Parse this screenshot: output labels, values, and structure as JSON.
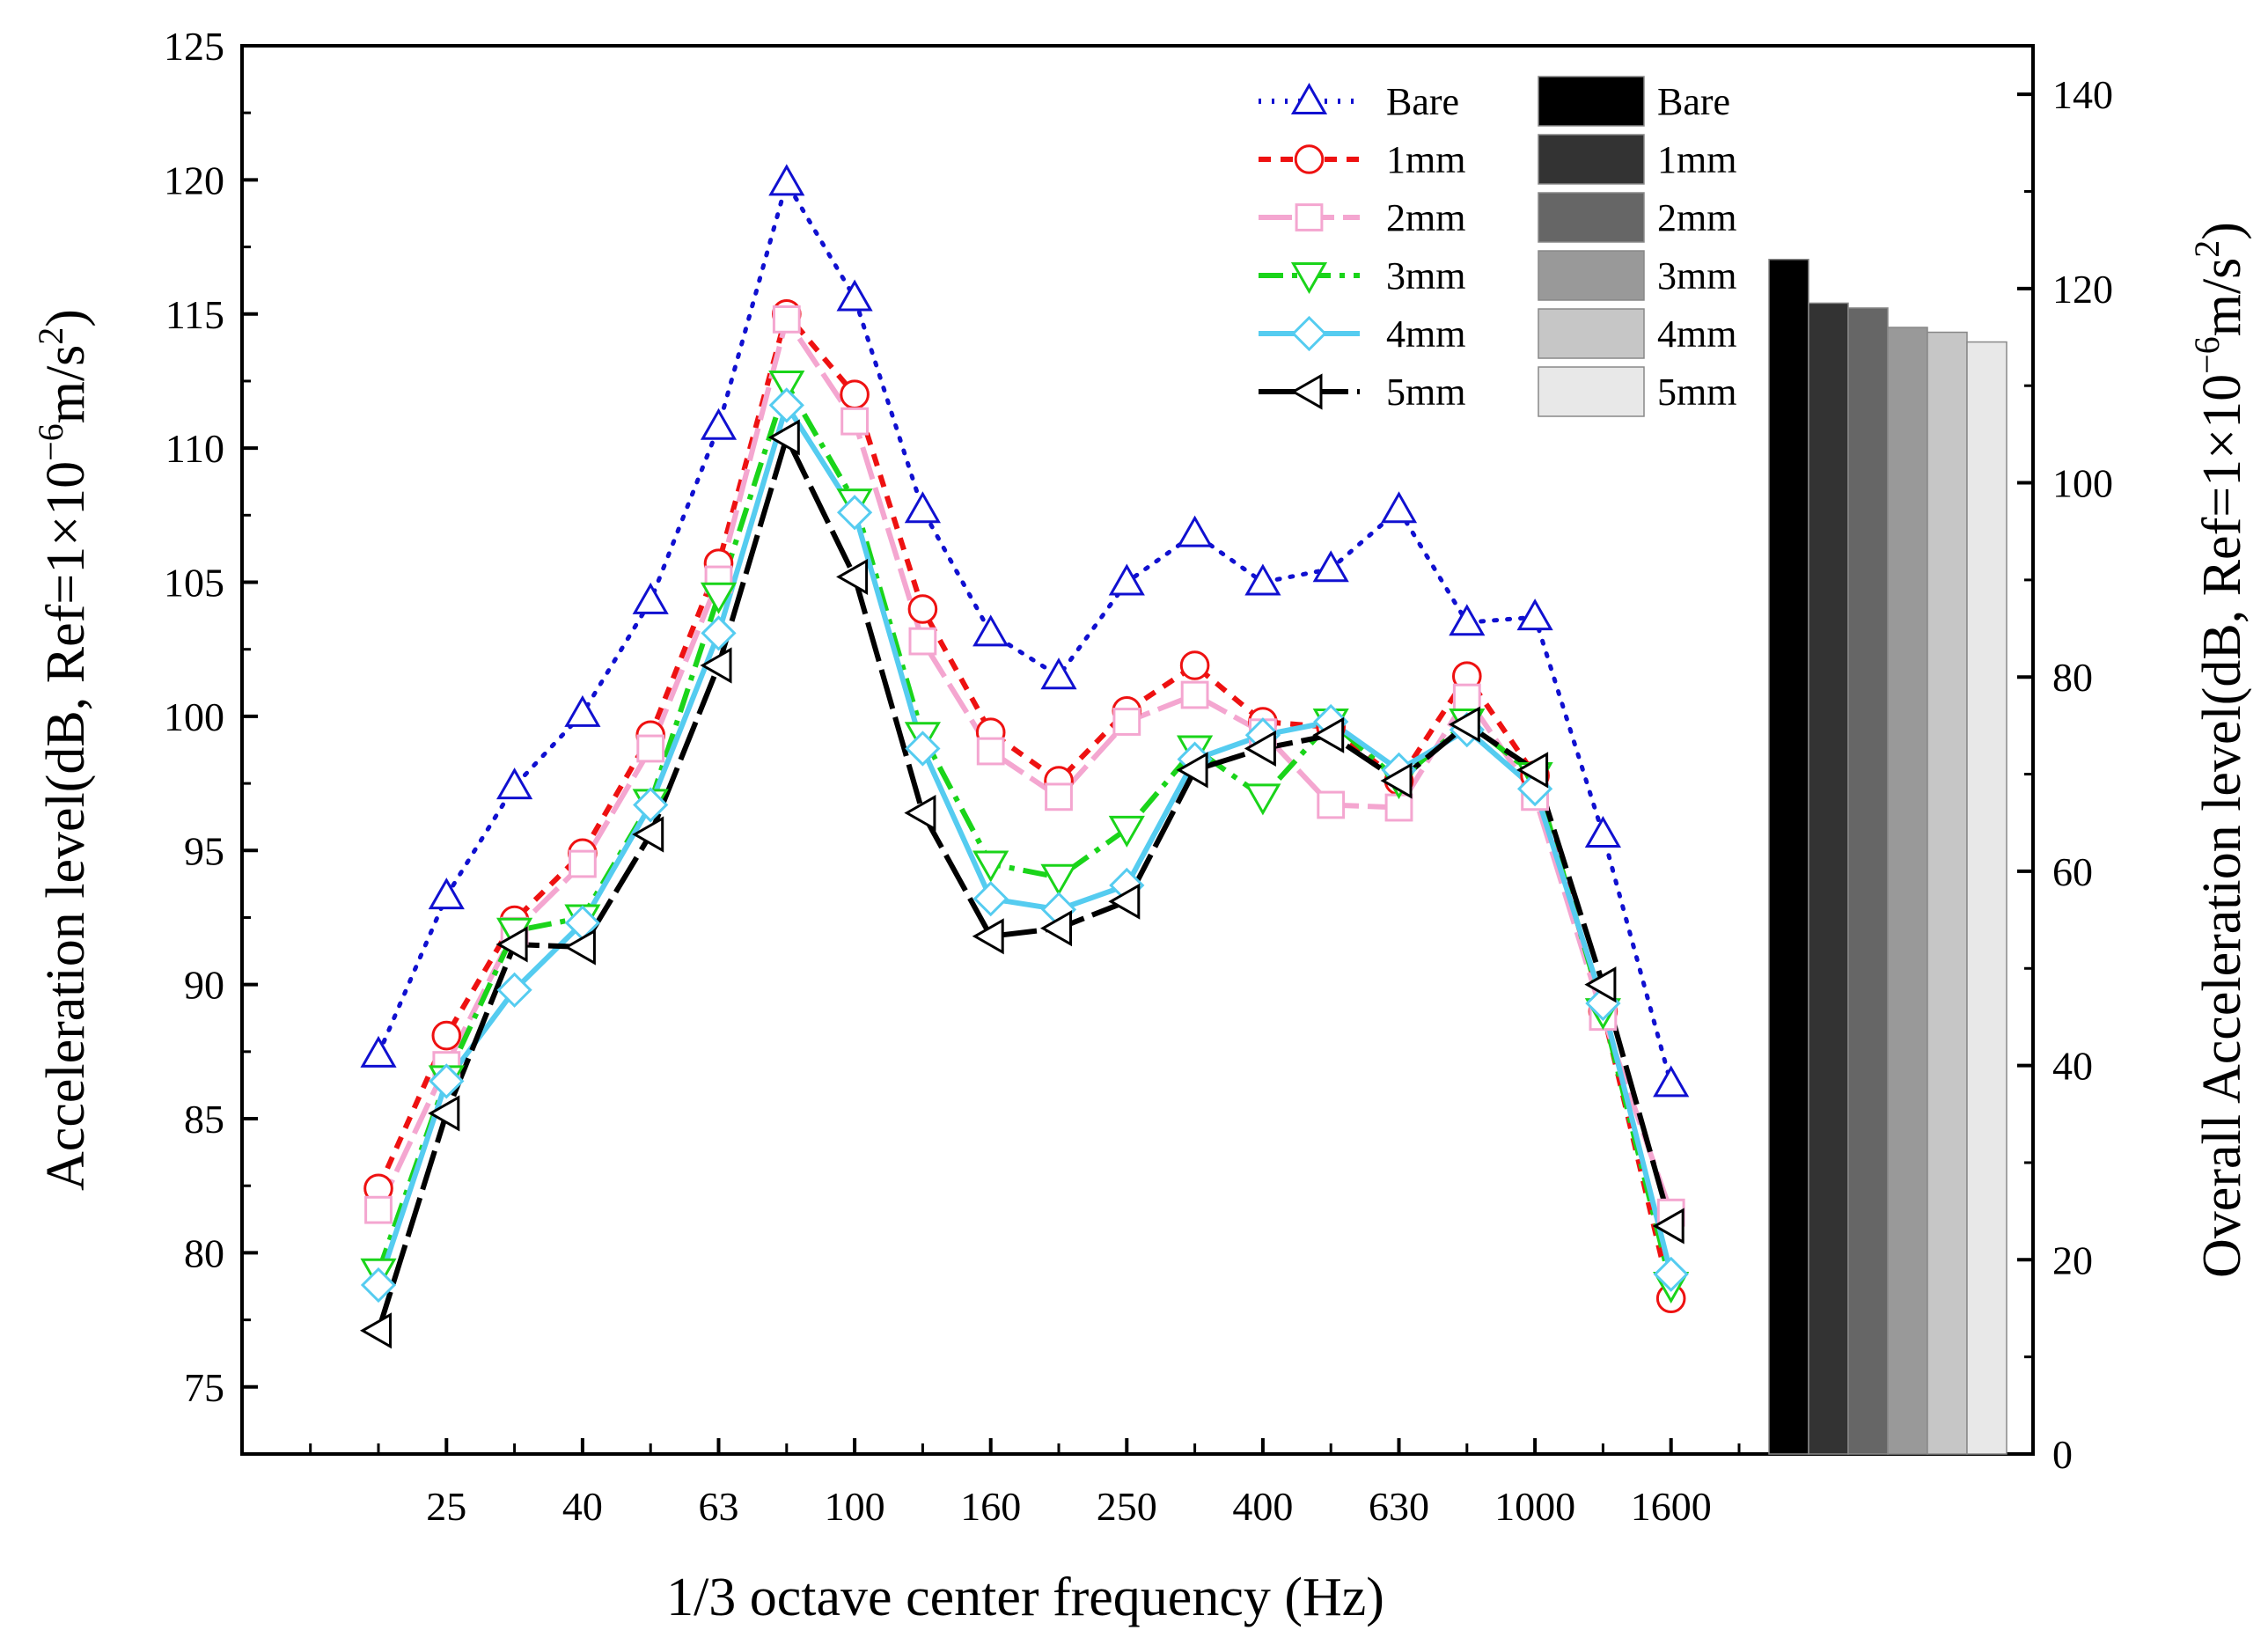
{
  "chart_data": {
    "type": "line",
    "xlabel": "1/3 octave center frequency (Hz)",
    "ylabel": "Acceleration level(dB, Ref=1×10",
    "ylabel_exp": "−6",
    "ylabel_mid": "m/s",
    "ylabel_exp2": "2",
    "ylabel_end": ")",
    "y2label": "Overall Acceleration level(dB, Ref=1×10",
    "y2label_exp": "−6",
    "y2label_mid": "m/s",
    "y2label_exp2": "2",
    "y2label_end": ")",
    "ylim": [
      72.5,
      125
    ],
    "y2lim": [
      0,
      145
    ],
    "yticks": [
      "75",
      "80",
      "85",
      "90",
      "95",
      "100",
      "105",
      "110",
      "115",
      "120",
      "125"
    ],
    "y2ticks": [
      "0",
      "20",
      "40",
      "60",
      "80",
      "100",
      "120",
      "140"
    ],
    "x": [
      "20",
      "25",
      "31.5",
      "40",
      "50",
      "63",
      "80",
      "100",
      "125",
      "160",
      "200",
      "250",
      "315",
      "400",
      "500",
      "630",
      "800",
      "1000",
      "1250",
      "1600"
    ],
    "xtick_labels": [
      "25",
      "40",
      "63",
      "100",
      "160",
      "250",
      "400",
      "630",
      "1000",
      "1600"
    ],
    "series": [
      {
        "name": "Bare",
        "color": "#1010d0",
        "dash": "3,12",
        "marker": "triangle-up",
        "values": [
          87.4,
          93.3,
          97.4,
          100.1,
          104.3,
          110.8,
          119.9,
          115.6,
          107.7,
          103.1,
          101.5,
          105.0,
          106.8,
          105.0,
          105.5,
          107.7,
          103.5,
          103.7,
          95.6,
          86.3
        ]
      },
      {
        "name": "1mm",
        "color": "#ee1111",
        "dash": "14,11",
        "marker": "circle",
        "values": [
          82.4,
          88.1,
          92.4,
          94.9,
          99.3,
          105.7,
          115.0,
          112.0,
          104.0,
          99.4,
          97.6,
          100.2,
          101.9,
          99.8,
          99.6,
          97.6,
          101.5,
          97.8,
          89.0,
          78.3
        ]
      },
      {
        "name": "2mm",
        "color": "#f4a6d0",
        "dash": "38,10",
        "marker": "square",
        "values": [
          81.6,
          87.0,
          92.0,
          94.5,
          98.8,
          105.1,
          114.8,
          111.0,
          102.8,
          98.7,
          97.0,
          99.8,
          100.8,
          99.4,
          96.7,
          96.6,
          100.7,
          97.0,
          88.8,
          81.5
        ]
      },
      {
        "name": "3mm",
        "color": "#1ad41a",
        "dash": "28,10,6,10",
        "marker": "triangle-down",
        "values": [
          79.3,
          86.5,
          92.0,
          92.5,
          96.8,
          104.5,
          112.4,
          108.0,
          99.3,
          94.5,
          94.0,
          95.8,
          98.8,
          97.0,
          99.8,
          97.6,
          99.8,
          97.8,
          89.0,
          78.8
        ]
      },
      {
        "name": "4mm",
        "color": "#55ccf0",
        "dash": "",
        "marker": "diamond",
        "values": [
          78.8,
          86.4,
          89.8,
          92.3,
          96.7,
          103.1,
          111.6,
          107.6,
          98.8,
          93.2,
          92.8,
          93.7,
          98.4,
          99.3,
          99.8,
          98.0,
          99.5,
          97.3,
          89.3,
          79.2
        ]
      },
      {
        "name": "5mm",
        "color": "#000000",
        "dash": "46,10",
        "marker": "triangle-left",
        "values": [
          77.1,
          85.2,
          91.5,
          91.4,
          95.6,
          101.9,
          110.4,
          105.2,
          96.4,
          91.8,
          92.1,
          93.1,
          98.0,
          98.8,
          99.3,
          97.6,
          99.7,
          98.0,
          90.0,
          81.0
        ]
      }
    ],
    "bar_series": [
      {
        "name": "Bare",
        "value": 123.0,
        "color": "#000000"
      },
      {
        "name": "1mm",
        "value": 118.5,
        "color": "#333333"
      },
      {
        "name": "2mm",
        "value": 118.0,
        "color": "#666666"
      },
      {
        "name": "3mm",
        "value": 116.0,
        "color": "#999999"
      },
      {
        "name": "4mm",
        "value": 115.5,
        "color": "#c6c6c6"
      },
      {
        "name": "5mm",
        "value": 114.5,
        "color": "#e8e8e8"
      }
    ],
    "legend": "top-right"
  }
}
